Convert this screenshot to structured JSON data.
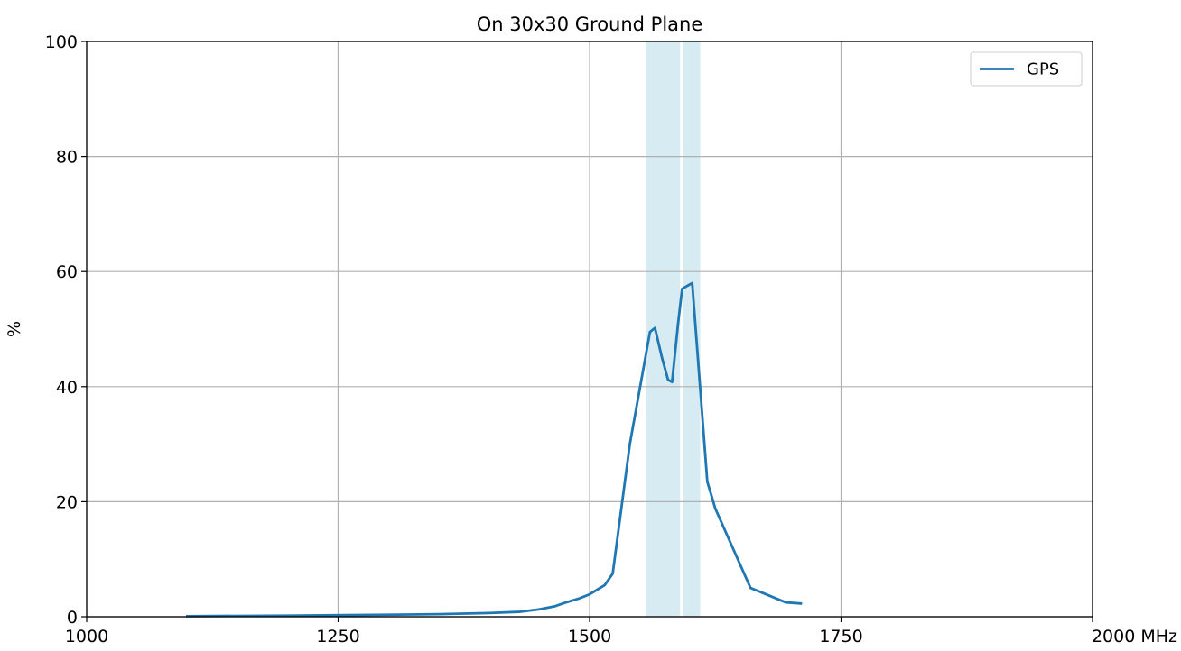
{
  "chart_data": {
    "type": "line",
    "title": "On 30x30 Ground Plane",
    "xlabel": "",
    "ylabel": "%",
    "xlim": [
      1000,
      2000
    ],
    "ylim": [
      0,
      100
    ],
    "x_ticks": [
      1000,
      1250,
      1500,
      1750,
      2000
    ],
    "x_tick_labels": [
      "1000",
      "1250",
      "1500",
      "1750",
      "2000 MHz"
    ],
    "y_ticks": [
      0,
      20,
      40,
      60,
      80,
      100
    ],
    "y_tick_labels": [
      "0",
      "20",
      "40",
      "60",
      "80",
      "100"
    ],
    "grid": true,
    "legend_position": "top-right",
    "bands": [
      {
        "x_start": 1556,
        "x_end": 1590,
        "color": "#add8e6"
      },
      {
        "x_start": 1593,
        "x_end": 1610,
        "color": "#add8e6"
      }
    ],
    "series": [
      {
        "name": "GPS",
        "color": "#1f77b4",
        "x": [
          1100,
          1200,
          1300,
          1350,
          1400,
          1430,
          1450,
          1465,
          1475,
          1490,
          1500,
          1515,
          1523,
          1540,
          1560,
          1565,
          1572,
          1578,
          1582,
          1588,
          1592,
          1602,
          1617,
          1625,
          1660,
          1695,
          1710
        ],
        "y": [
          0.1,
          0.2,
          0.35,
          0.45,
          0.65,
          0.85,
          1.3,
          1.8,
          2.4,
          3.2,
          3.9,
          5.5,
          7.5,
          30,
          49.5,
          50.2,
          45,
          41.2,
          40.8,
          51,
          57,
          58,
          23.5,
          18.8,
          5,
          2.5,
          2.3
        ]
      }
    ]
  }
}
